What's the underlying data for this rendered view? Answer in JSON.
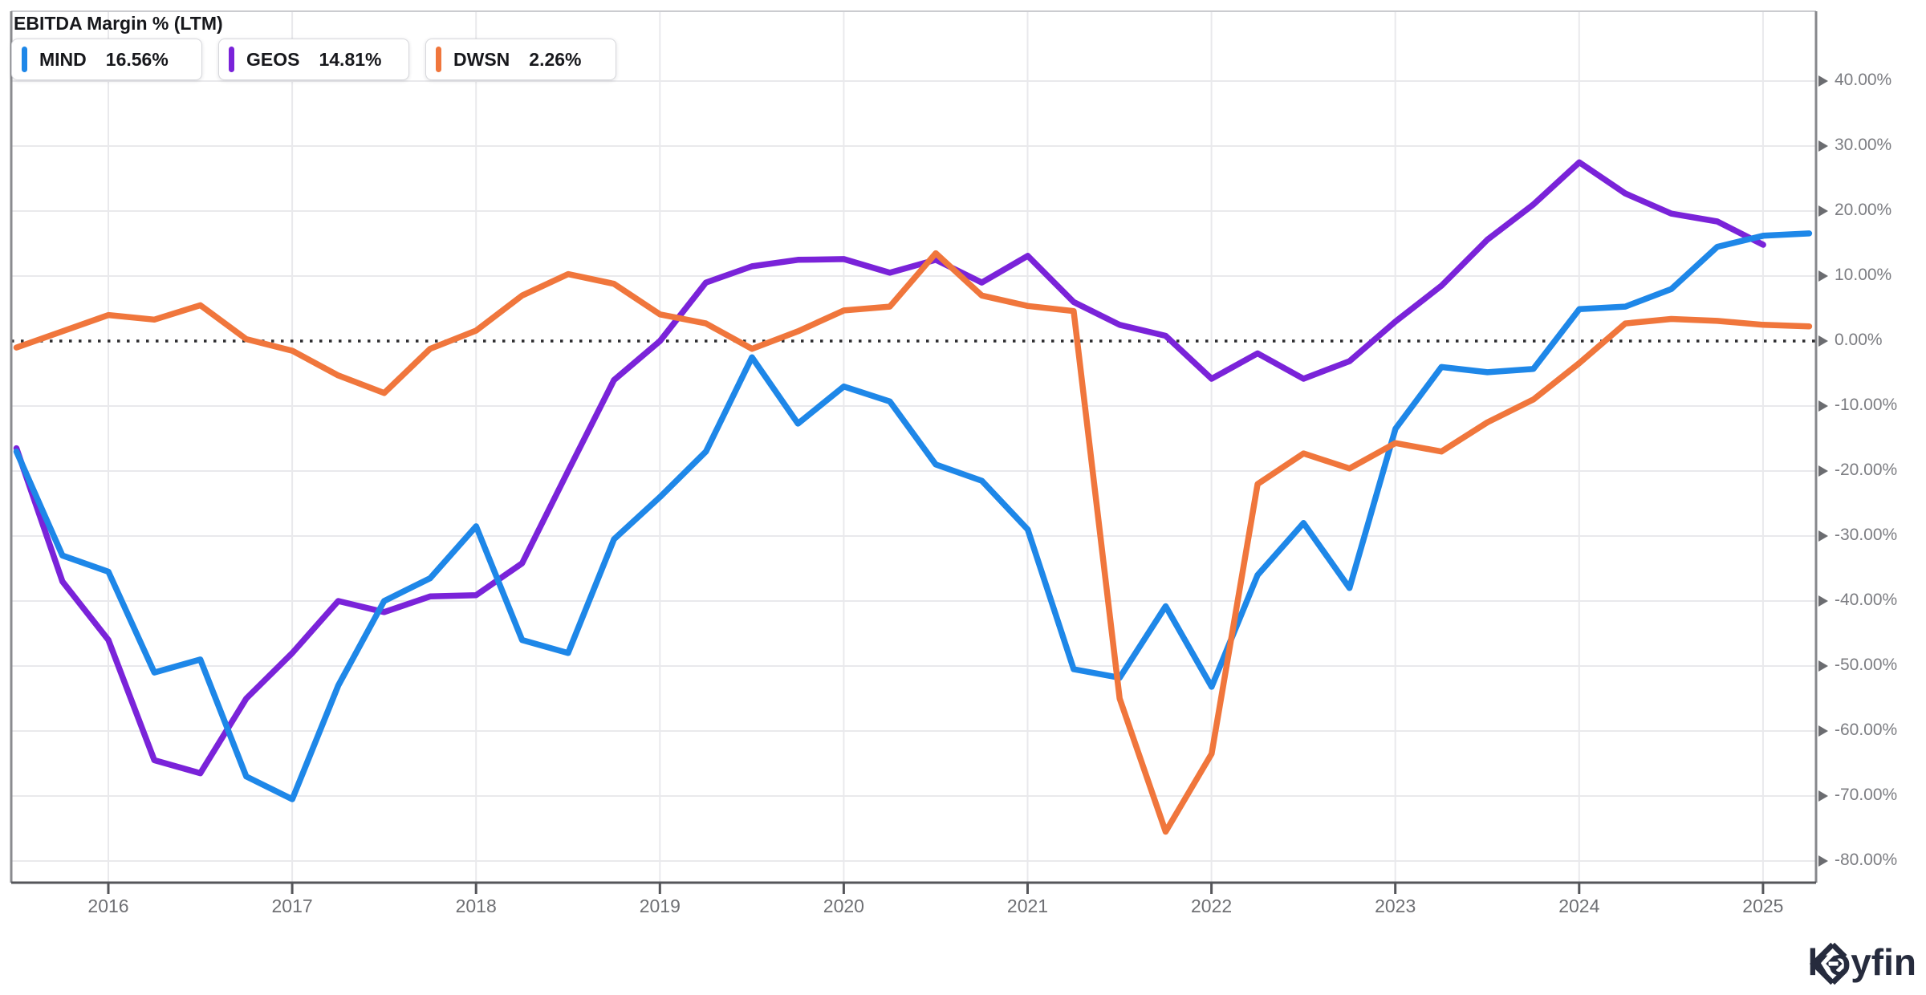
{
  "header": {
    "title": "EBITDA Margin % (LTM)"
  },
  "legend": [
    {
      "ticker": "MIND",
      "value": "16.56%",
      "color": "#1e87e8"
    },
    {
      "ticker": "GEOS",
      "value": "14.81%",
      "color": "#7a23d9"
    },
    {
      "ticker": "DWSN",
      "value": "2.26%",
      "color": "#f0763c"
    }
  ],
  "chart_data": {
    "type": "line",
    "title": "EBITDA Margin % (LTM)",
    "x_tick_labels": [
      "2016",
      "2017",
      "2018",
      "2019",
      "2020",
      "2021",
      "2022",
      "2023",
      "2024",
      "2025"
    ],
    "y_tick_labels": [
      "40.00%",
      "30.00%",
      "20.00%",
      "10.00%",
      "0.00%",
      "-10.00%",
      "-20.00%",
      "-30.00%",
      "-40.00%",
      "-50.00%",
      "-60.00%",
      "-70.00%",
      "-80.00%"
    ],
    "y_tick_values": [
      40,
      30,
      20,
      10,
      0,
      -10,
      -20,
      -30,
      -40,
      -50,
      -60,
      -70,
      -80
    ],
    "ylim": [
      -83.5,
      50.5
    ],
    "x_start_year": 2015.5,
    "x_step_years": 0.25,
    "grid": true,
    "zero_line_dotted": true,
    "legend_position": "top-left",
    "series": [
      {
        "name": "GEOS",
        "color": "#7a23d9",
        "values": [
          -16.5,
          -37,
          -46,
          -64.5,
          -66.5,
          -55,
          -48,
          -40,
          -41.7,
          -39.3,
          -39.1,
          -34.2,
          -20,
          -6,
          0,
          9,
          11.5,
          12.5,
          12.6,
          10.5,
          12.5,
          9,
          13.1,
          6,
          2.5,
          0.8,
          -5.8,
          -1.9,
          -5.8,
          -3.1,
          3,
          8.5,
          15.6,
          21,
          27.5,
          22.7,
          19.6,
          18.4,
          14.81
        ]
      },
      {
        "name": "MIND",
        "color": "#1e87e8",
        "values": [
          -17,
          -33,
          -35.5,
          -51,
          -49,
          -67,
          -70.5,
          -53,
          -40,
          -36.5,
          -28.5,
          -46,
          -48,
          -30.5,
          -24,
          -17,
          -2.5,
          -12.7,
          -7,
          -9.3,
          -19,
          -21.5,
          -29,
          -50.5,
          -51.8,
          -40.8,
          -53.2,
          -36,
          -28,
          -38,
          -13.5,
          -4,
          -4.8,
          -4.3,
          4.9,
          5.3,
          8,
          14.5,
          16.2,
          16.56
        ]
      },
      {
        "name": "DWSN",
        "color": "#f0763c",
        "values": [
          -1,
          1.5,
          4,
          3.3,
          5.5,
          0.3,
          -1.5,
          -5.3,
          -8,
          -1.2,
          1.6,
          7,
          10.3,
          8.8,
          4.1,
          2.7,
          -1.2,
          1.5,
          4.7,
          5.3,
          13.5,
          7,
          5.4,
          4.6,
          -55,
          -75.5,
          -63.5,
          -22,
          -17.3,
          -19.6,
          -15.7,
          -17,
          -12.5,
          -9,
          -3.4,
          2.7,
          3.4,
          3.1,
          2.5,
          2.26
        ]
      }
    ]
  },
  "footer": {
    "brand": "koyfin"
  }
}
